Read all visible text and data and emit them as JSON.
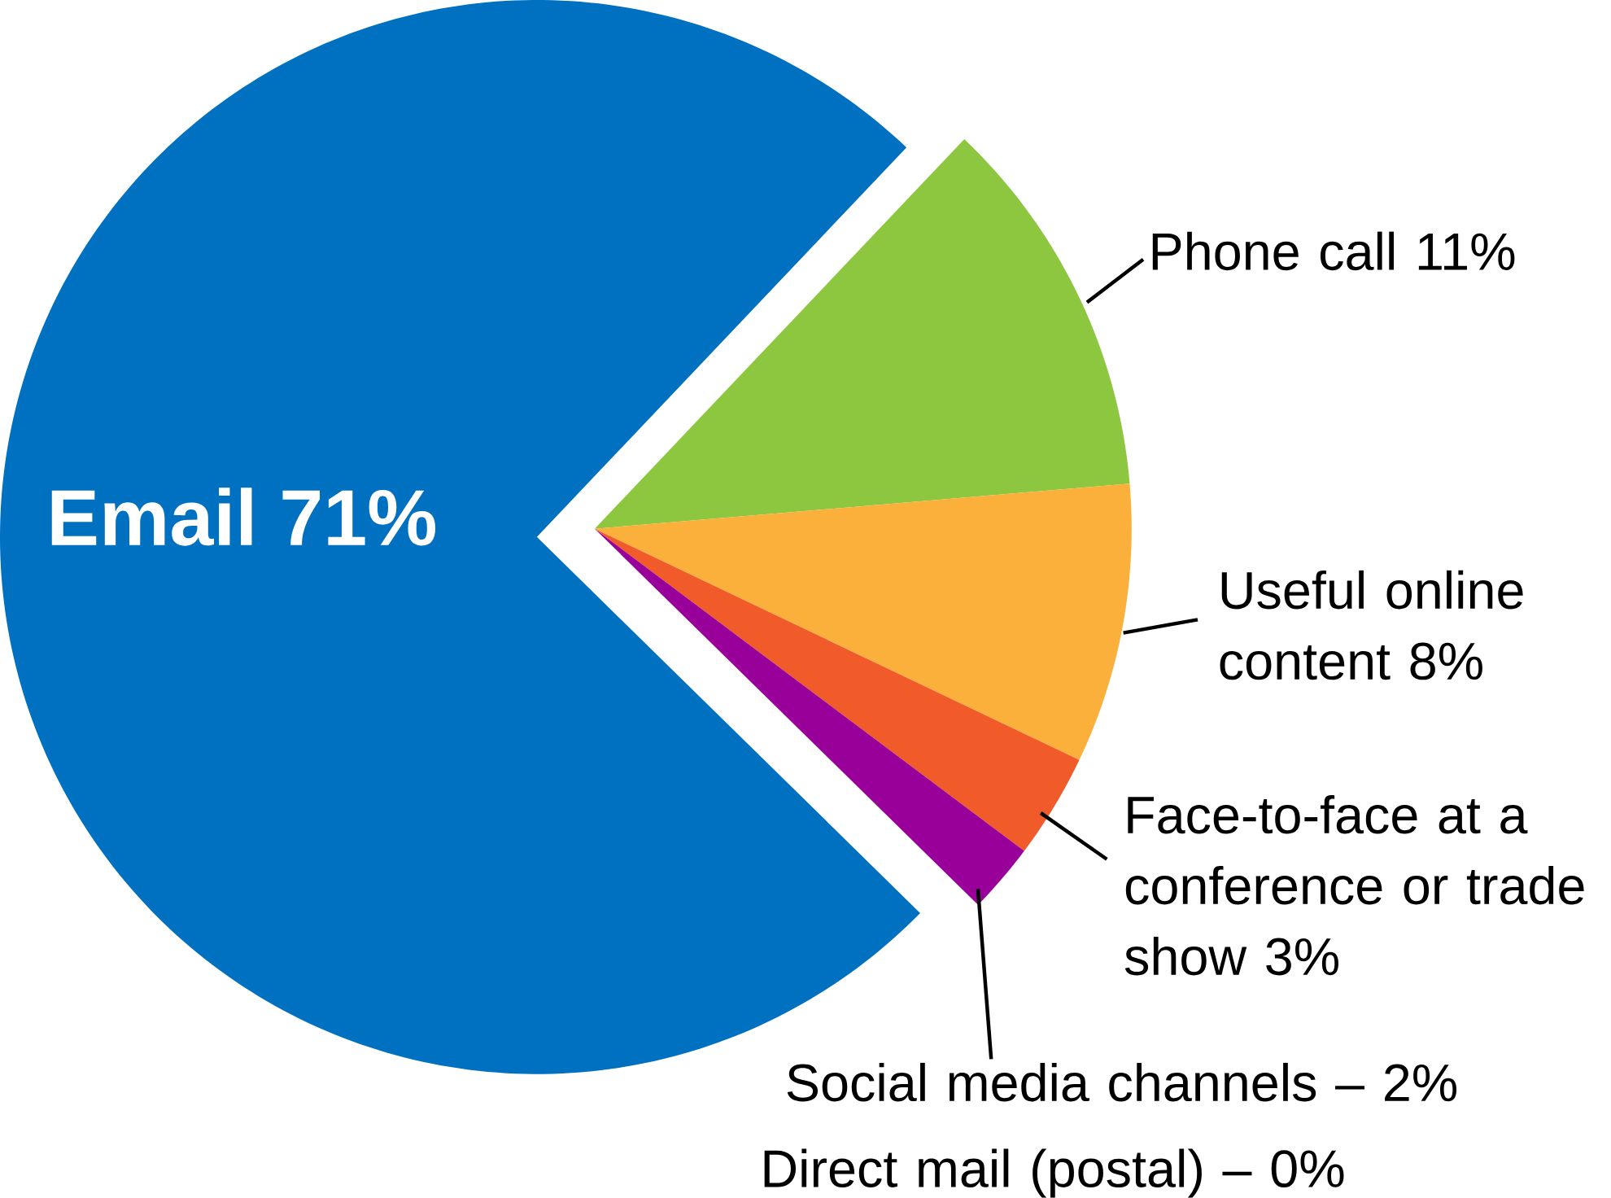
{
  "chart_data": {
    "type": "pie",
    "categories": [
      "Email",
      "Phone call",
      "Useful online content",
      "Face-to-face at a conference or trade show",
      "Social media channels –",
      "Direct mail (postal) –"
    ],
    "values": [
      71,
      11,
      8,
      3,
      2,
      0
    ],
    "value_labels": [
      "71%",
      "11%",
      "8%",
      "3%",
      "2%",
      "0%"
    ],
    "colors": [
      "#0070c0",
      "#8dc63f",
      "#fbb03b",
      "#f15a29",
      "#990099",
      null
    ]
  }
}
